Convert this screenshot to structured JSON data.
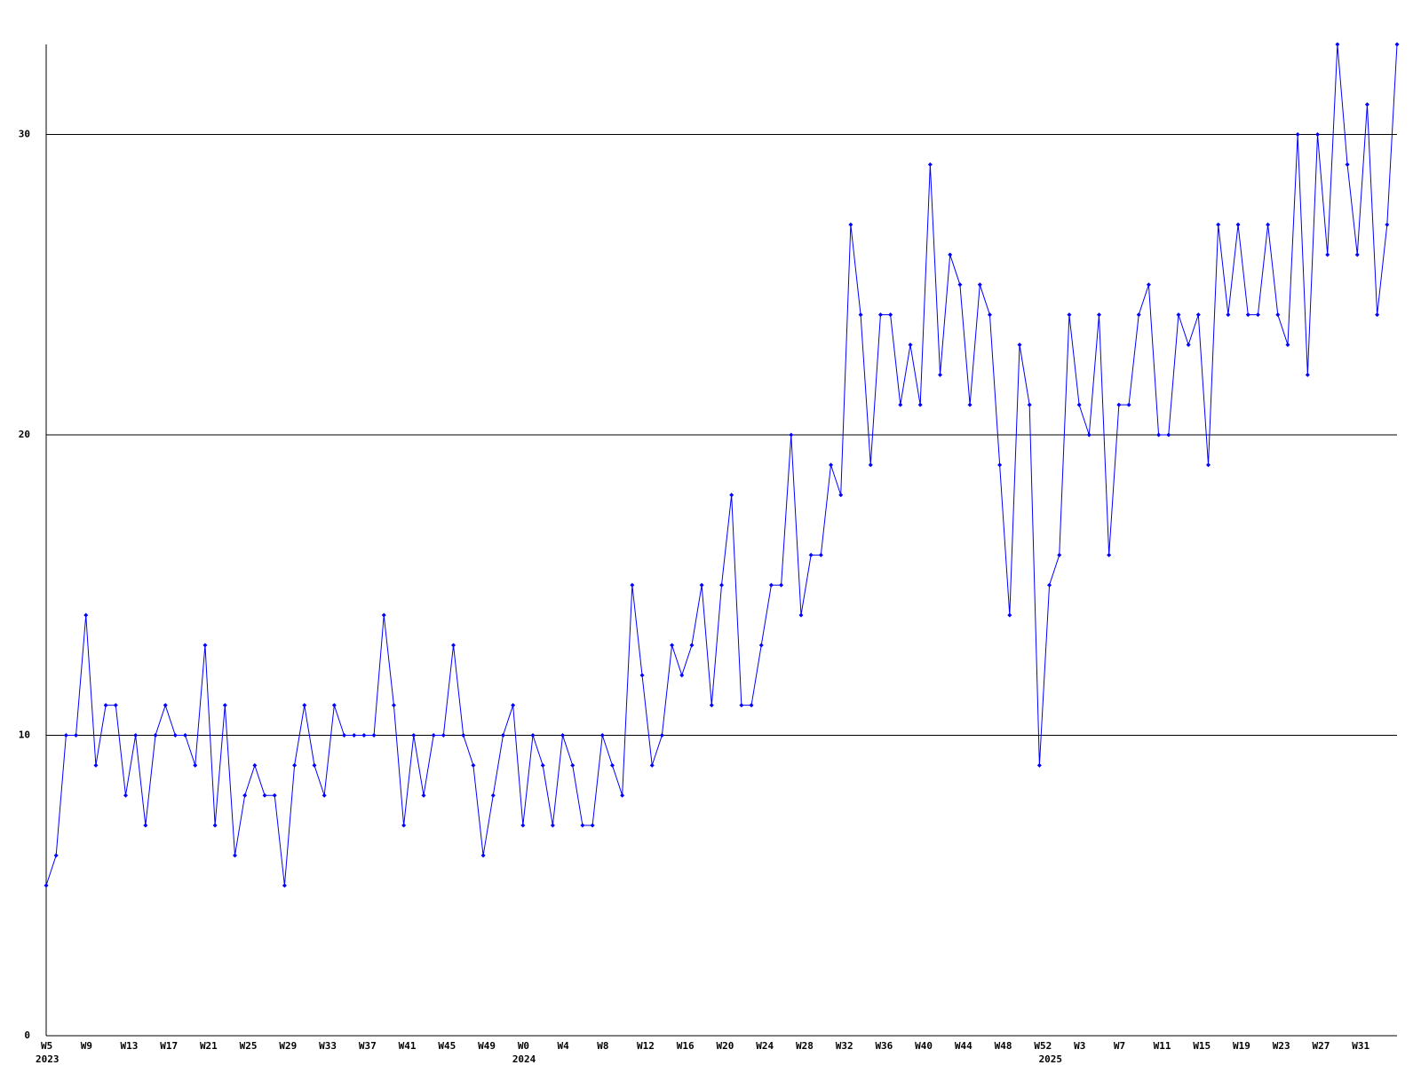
{
  "chart_data": {
    "type": "line",
    "categories": [
      "W5",
      null,
      null,
      null,
      "W9",
      null,
      null,
      null,
      "W13",
      null,
      null,
      null,
      "W17",
      null,
      null,
      null,
      "W21",
      null,
      null,
      null,
      "W25",
      null,
      null,
      null,
      "W29",
      null,
      null,
      null,
      "W33",
      null,
      null,
      null,
      "W37",
      null,
      null,
      null,
      "W41",
      null,
      null,
      null,
      "W45",
      null,
      null,
      null,
      "W49",
      null,
      null,
      null,
      "W0",
      null,
      null,
      null,
      "W4",
      null,
      null,
      null,
      "W8",
      null,
      null,
      null,
      "W12",
      null,
      null,
      null,
      "W16",
      null,
      null,
      null,
      "W20",
      null,
      null,
      null,
      "W24",
      null,
      null,
      null,
      "W28",
      null,
      null,
      null,
      "W32",
      null,
      null,
      null,
      "W36",
      null,
      null,
      null,
      "W40",
      null,
      null,
      null,
      "W44",
      null,
      null,
      null,
      "W48",
      null,
      null,
      null,
      "W52",
      null,
      null,
      null,
      "W3",
      null,
      null,
      null,
      "W7",
      null,
      null,
      null,
      "W11",
      null,
      null,
      null,
      "W15",
      null,
      null,
      null,
      "W19",
      null,
      null,
      null,
      "W23",
      null,
      null,
      null,
      "W27",
      null,
      null,
      null,
      "W31",
      null,
      null,
      null,
      null
    ],
    "category_years": [
      "2023",
      null,
      null,
      null,
      null,
      null,
      null,
      null,
      null,
      null,
      null,
      null,
      null,
      null,
      null,
      null,
      null,
      null,
      null,
      null,
      null,
      null,
      null,
      null,
      null,
      null,
      null,
      null,
      null,
      null,
      null,
      null,
      null,
      null,
      null,
      null,
      null,
      null,
      null,
      null,
      null,
      null,
      null,
      null,
      null,
      null,
      null,
      null,
      "2024",
      null,
      null,
      null,
      null,
      null,
      null,
      null,
      null,
      null,
      null,
      null,
      null,
      null,
      null,
      null,
      null,
      null,
      null,
      null,
      null,
      null,
      null,
      null,
      null,
      null,
      null,
      null,
      null,
      null,
      null,
      null,
      null,
      null,
      null,
      null,
      null,
      null,
      null,
      null,
      null,
      null,
      null,
      null,
      null,
      null,
      null,
      null,
      null,
      null,
      null,
      null,
      null,
      "2025",
      null,
      null,
      null,
      null,
      null,
      null,
      null,
      null,
      null,
      null,
      null,
      null,
      null,
      null,
      null,
      null,
      null,
      null,
      null,
      null,
      null,
      null,
      null,
      null,
      null,
      null,
      null,
      null,
      null,
      null,
      null,
      null,
      null,
      null,
      null
    ],
    "values": [
      5,
      6,
      10,
      10,
      14,
      9,
      11,
      11,
      8,
      10,
      7,
      10,
      11,
      10,
      10,
      9,
      13,
      7,
      11,
      6,
      8,
      9,
      8,
      8,
      5,
      9,
      11,
      9,
      8,
      11,
      10,
      10,
      10,
      10,
      14,
      11,
      7,
      10,
      8,
      10,
      10,
      13,
      10,
      9,
      6,
      8,
      10,
      11,
      7,
      10,
      9,
      7,
      10,
      9,
      7,
      7,
      10,
      9,
      8,
      15,
      12,
      9,
      10,
      13,
      12,
      13,
      15,
      11,
      15,
      18,
      11,
      11,
      13,
      15,
      15,
      20,
      14,
      16,
      16,
      19,
      18,
      27,
      24,
      19,
      24,
      24,
      21,
      23,
      21,
      29,
      22,
      26,
      25,
      21,
      25,
      24,
      19,
      14,
      23,
      21,
      9,
      15,
      16,
      24,
      21,
      20,
      24,
      16,
      21,
      21,
      24,
      25,
      20,
      20,
      24,
      23,
      24,
      19,
      27,
      24,
      27,
      24,
      24,
      27,
      24,
      23,
      30,
      22,
      30,
      26,
      33,
      29,
      26,
      31,
      24,
      27,
      33
    ],
    "color": "#0000ff",
    "ylim": [
      0,
      33
    ],
    "yticks": [
      0,
      10,
      20,
      30
    ],
    "grid": true
  }
}
